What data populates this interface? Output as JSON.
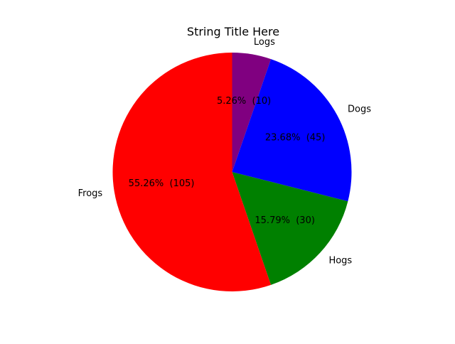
{
  "chart_data": {
    "type": "pie",
    "title": "String Title Here",
    "start_angle_deg": 90,
    "direction": "clockwise",
    "slices": [
      {
        "label": "Logs",
        "value": 10,
        "percent_text": "5.26%  (10)",
        "color": "#800080"
      },
      {
        "label": "Dogs",
        "value": 45,
        "percent_text": "23.68%  (45)",
        "color": "#0000ff"
      },
      {
        "label": "Hogs",
        "value": 30,
        "percent_text": "15.79%  (30)",
        "color": "#008000"
      },
      {
        "label": "Frogs",
        "value": 105,
        "percent_text": "55.26%  (105)",
        "color": "#ff0000"
      }
    ]
  }
}
